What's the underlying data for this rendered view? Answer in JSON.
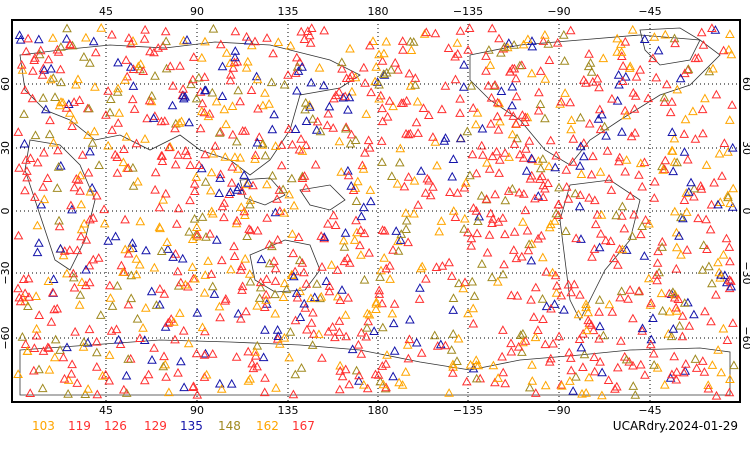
{
  "map": {
    "longitude_top_ticks": [
      "45",
      "90",
      "135",
      "180",
      "−135",
      "−90",
      "−45"
    ],
    "longitude_bottom_ticks": [
      "45",
      "90",
      "135",
      "180",
      "−135",
      "−90",
      "−45"
    ],
    "latitude_ticks": [
      "60",
      "30",
      "0",
      "−30",
      "−60"
    ],
    "grid": "dotted",
    "marker": "open-triangle"
  },
  "legend": {
    "entries": [
      {
        "label": "103",
        "color": "#ffa500"
      },
      {
        "label": "119",
        "color": "#ff3030"
      },
      {
        "label": "126",
        "color": "#ff3030"
      },
      {
        "label": "129",
        "color": "#ff3030"
      },
      {
        "label": "135",
        "color": "#1414aa"
      },
      {
        "label": "148",
        "color": "#a08a20"
      },
      {
        "label": "162",
        "color": "#ffa500"
      },
      {
        "label": "167",
        "color": "#ff3030"
      }
    ]
  },
  "stamp": "UCARdry.2024-01-29"
}
